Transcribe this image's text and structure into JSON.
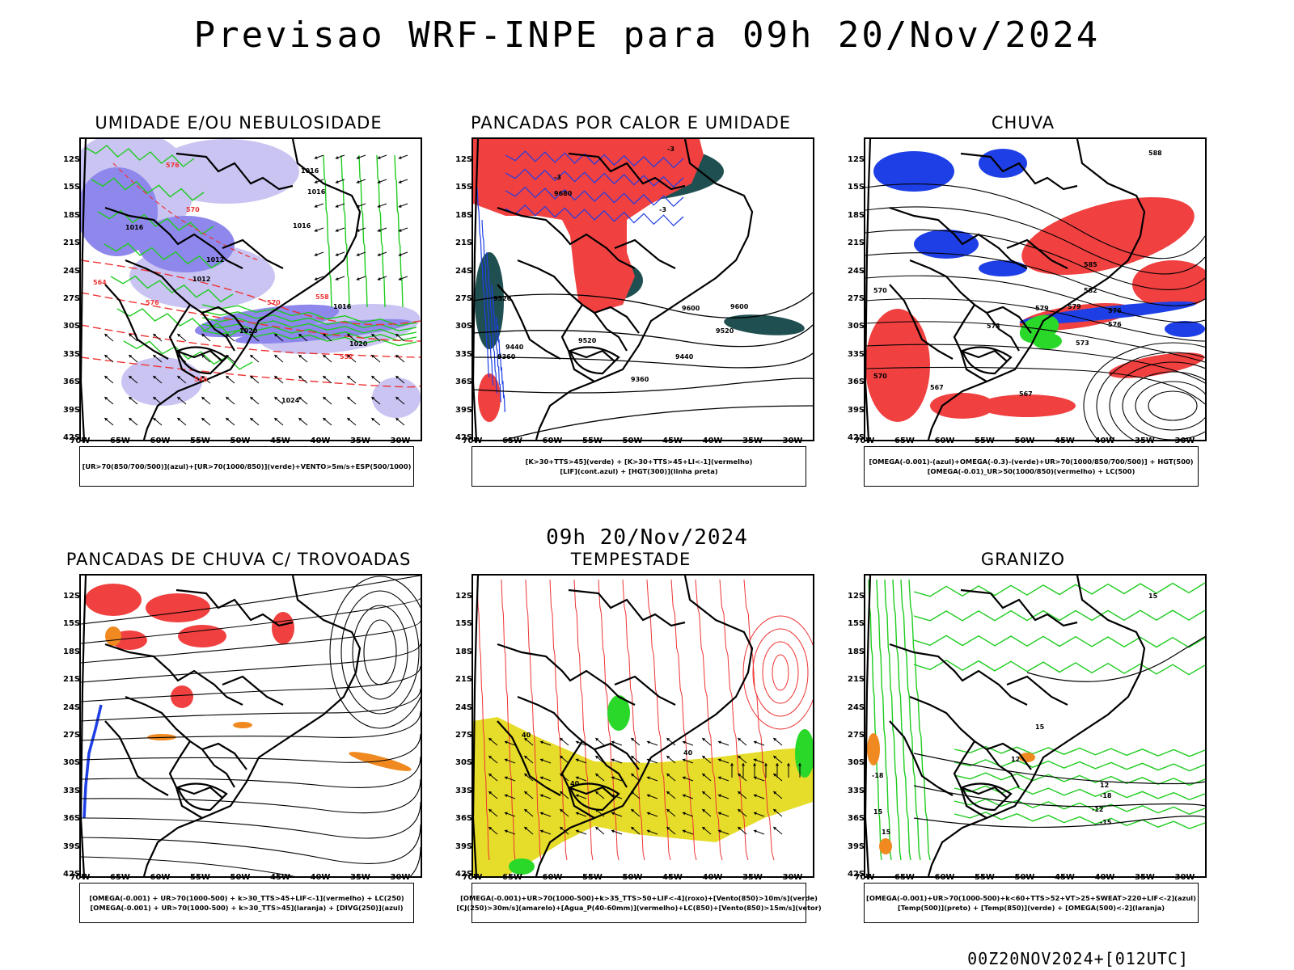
{
  "header": {
    "title": "Previsao WRF-INPE  para 09h 20/Nov/2024",
    "mid_date": "09h 20/Nov/2024",
    "run_label": "00Z20NOV2024+[012UTC]"
  },
  "axes": {
    "lat_labels": [
      "12S",
      "15S",
      "18S",
      "21S",
      "24S",
      "27S",
      "30S",
      "33S",
      "36S",
      "39S",
      "42S"
    ],
    "lon_labels": [
      "70W",
      "65W",
      "60W",
      "55W",
      "50W",
      "45W",
      "40W",
      "35W",
      "30W"
    ]
  },
  "colors": {
    "blue_light": "#c9c4f2",
    "blue_mid": "#8f88ec",
    "blue_dark": "#4d3fe0",
    "green_line": "#1fcc1f",
    "red_line": "#ee3333",
    "red_fill": "#f04040",
    "dark_teal": "#1f4f50",
    "blue_fill": "#1f3fe6",
    "green_fill": "#2ad82a",
    "orange_fill": "#f08a20",
    "yellow_fill": "#e6dc2a",
    "purple_fill": "#a040c0"
  },
  "panels": [
    {
      "title": "UMIDADE E/OU NEBULOSIDADE",
      "legend": [
        "[UR>70(850/700/500)](azul)+[UR>70(1000/850)](verde)+VENTO>5m/s+ESP(500/1000)"
      ],
      "contour_labels": [
        "1016",
        "1016",
        "1016",
        "1016",
        "1012",
        "1012",
        "1016",
        "1020",
        "1020",
        "1024",
        "576",
        "570",
        "564",
        "558",
        "552",
        "546",
        "570",
        "576"
      ]
    },
    {
      "title": "PANCADAS POR CALOR E UMIDADE",
      "legend": [
        "[K>30+TTS>45](verde) + [K>30+TTS>45+LI<-1](vermelho)",
        "[LIF](cont.azul) + [HGT(300)](linha preta)"
      ],
      "contour_labels": [
        "9680",
        "9600",
        "9600",
        "9520",
        "9520",
        "9440",
        "9440",
        "9360",
        "9360",
        "9520",
        "-3",
        "-3",
        "-3"
      ]
    },
    {
      "title": "CHUVA",
      "legend": [
        "[OMEGA(-0.001)-(azul)+OMEGA(-0.3)-(verde)+UR>70(1000/850/700/500)] + HGT(500)",
        "[OMEGA(-0.01)_UR>50(1000/850)(vermelho) + LC(500)"
      ],
      "contour_labels": [
        "588",
        "585",
        "582",
        "579",
        "576",
        "573",
        "570",
        "567",
        "576",
        "579",
        "573",
        "570",
        "567"
      ]
    },
    {
      "title": "PANCADAS DE CHUVA C/ TROVOADAS",
      "legend": [
        "[OMEGA(-0.001) + UR>70(1000-500) + k>30_TTS>45+LIF<-1](vermelho) + LC(250)",
        "[OMEGA(-0.001) + UR>70(1000-500) + k>30_TTS>45](laranja) + [DIVG(250)](azul)"
      ],
      "contour_labels": []
    },
    {
      "title": "TEMPESTADE",
      "legend": [
        "[OMEGA(-0.001)+UR>70(1000-500)+k>35_TTS>50+LIF<-4](roxo)+[Vento(850)>10m/s](verde)",
        "[CJ(250)>30m/s](amarelo)+[Agua_P(40-60mm)](vermelho)+LC(850)+[Vento(850)>15m/s](vetor)"
      ],
      "contour_labels": [
        "40",
        "40",
        "40"
      ]
    },
    {
      "title": "GRANIZO",
      "legend": [
        "[OMEGA(-0.001)+UR>70(1000-500)+k<60+TTS>52+VT>25+SWEAT>220+LIF<-2](azul)",
        "[Temp(500)](preto) + [Temp(850)](verde) + [OMEGA(500)<-2](laranja)"
      ],
      "contour_labels": [
        "15",
        "15",
        "12",
        "12",
        "-12",
        "-15",
        "-18",
        "-18",
        "15",
        "15"
      ]
    }
  ]
}
